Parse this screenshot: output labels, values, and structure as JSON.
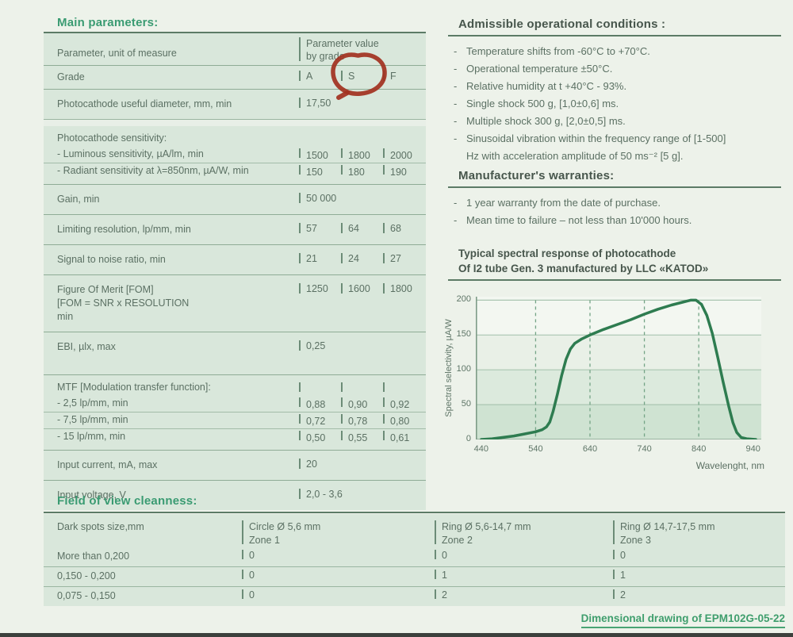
{
  "colors": {
    "page_bg": "#edf2ea",
    "table_bg": "#d9e7db",
    "heading_green": "#3a9b72",
    "heading_dark": "#47564c",
    "body_text": "#5b7063",
    "chart_line": "#2e7c50",
    "annotation_red": "#a23120"
  },
  "annotation": {
    "type": "hand-drawn red circle",
    "circled_value": "S"
  },
  "main": {
    "title": "Main parameters:",
    "header_param": "Parameter, unit of measure",
    "header_value_line1": "Parameter value",
    "header_value_line2": "by grade",
    "grade_label": "Grade",
    "grades": [
      "A",
      "S",
      "F"
    ],
    "rows": [
      {
        "label": "Photocathode useful diameter, mm, min",
        "value": "17,50"
      },
      {
        "label": "Photocathode sensitivity:",
        "sub": [
          {
            "label": "- Luminous sensitivity, µA/lm, min",
            "values": [
              "1500",
              "1800",
              "2000"
            ]
          },
          {
            "label": "- Radiant sensitivity at λ=850nm, µA/W, min",
            "values": [
              "150",
              "180",
              "190"
            ]
          }
        ]
      },
      {
        "label": "Gain, min",
        "value": "50 000"
      },
      {
        "label": "Limiting resolution, lp/mm, min",
        "values": [
          "57",
          "64",
          "68"
        ]
      },
      {
        "label": "Signal to noise ratio, min",
        "values": [
          "21",
          "24",
          "27"
        ]
      },
      {
        "label_lines": [
          "Figure Of Merit [FOM]",
          "[FOM = SNR x RESOLUTION",
          "min"
        ],
        "values": [
          "1250",
          "1600",
          "1800"
        ]
      },
      {
        "label": "EBI, µlx, max",
        "value": "0,25"
      },
      {
        "label": "MTF [Modulation transfer function]:",
        "sub": [
          {
            "label": "- 2,5 lp/mm, min",
            "values": [
              "0,88",
              "0,90",
              "0,92"
            ]
          },
          {
            "label": "- 7,5 lp/mm, min",
            "values": [
              "0,72",
              "0,78",
              "0,80"
            ]
          },
          {
            "label": "- 15 lp/mm, min",
            "values": [
              "0,50",
              "0,55",
              "0,61"
            ]
          }
        ]
      },
      {
        "label": "Input current, mA, max",
        "value": "20"
      },
      {
        "label": "Input voltage, V",
        "value": "2,0 - 3,6"
      }
    ]
  },
  "conditions": {
    "title": "Admissible operational conditions :",
    "items": [
      "Temperature shifts from -60°C to +70°C.",
      "Operational temperature ±50°C.",
      "Relative humidity at t +40°C - 93%.",
      "Single shock 500 g, [1,0±0,6] ms.",
      "Multiple shock 300 g, [2,0±0,5] ms.",
      "Sinusoidal vibration within the frequency range of [1-500] Hz with acceleration amplitude of 50 ms⁻² [5 g]."
    ]
  },
  "warranties": {
    "title": "Manufacturer's warranties:",
    "items": [
      "1 year warranty from the date of purchase.",
      "Mean time to failure – not less than 10'000 hours."
    ]
  },
  "spectral": {
    "title_line1": "Typical spectral response of photocathode",
    "title_line2": "Of I2 tube Gen. 3 manufactured by LLC «KATOD»"
  },
  "chart_data": {
    "type": "line",
    "title": "Typical spectral response of photocathode of I2 tube Gen. 3 manufactured by LLC «KATOD»",
    "xlabel": "Wavelenght, nm",
    "ylabel": "Spectral selectivity, µA/W",
    "xlim": [
      430,
      955
    ],
    "ylim": [
      0,
      205
    ],
    "x_ticks": [
      440,
      540,
      640,
      740,
      840,
      940
    ],
    "y_ticks": [
      0,
      50,
      100,
      150,
      200
    ],
    "grid": {
      "horizontal": "solid",
      "vertical": "dashed"
    },
    "legend": "none",
    "line_color": "#2e7c50",
    "series": [
      {
        "name": "photocathode spectral response",
        "points": [
          [
            440,
            0
          ],
          [
            460,
            1
          ],
          [
            480,
            3
          ],
          [
            500,
            5
          ],
          [
            520,
            8
          ],
          [
            540,
            11
          ],
          [
            552,
            14
          ],
          [
            560,
            18
          ],
          [
            566,
            25
          ],
          [
            572,
            40
          ],
          [
            580,
            65
          ],
          [
            588,
            92
          ],
          [
            596,
            115
          ],
          [
            604,
            130
          ],
          [
            612,
            138
          ],
          [
            624,
            144
          ],
          [
            640,
            150
          ],
          [
            665,
            158
          ],
          [
            690,
            165
          ],
          [
            715,
            172
          ],
          [
            740,
            180
          ],
          [
            765,
            187
          ],
          [
            790,
            193
          ],
          [
            810,
            197
          ],
          [
            825,
            200
          ],
          [
            835,
            200
          ],
          [
            845,
            194
          ],
          [
            855,
            178
          ],
          [
            865,
            152
          ],
          [
            875,
            118
          ],
          [
            885,
            82
          ],
          [
            895,
            48
          ],
          [
            903,
            24
          ],
          [
            910,
            10
          ],
          [
            918,
            3
          ],
          [
            928,
            1
          ],
          [
            945,
            0
          ]
        ]
      }
    ]
  },
  "fov": {
    "title": "Field of view cleanness:",
    "col_label": "Dark spots size,mm",
    "columns": [
      {
        "line1": "Circle Ø 5,6 mm",
        "line2": "Zone 1"
      },
      {
        "line1": "Ring Ø 5,6-14,7 mm",
        "line2": "Zone 2"
      },
      {
        "line1": "Ring Ø 14,7-17,5 mm",
        "line2": "Zone 3"
      }
    ],
    "rows": [
      {
        "label": "More than 0,200",
        "values": [
          "0",
          "0",
          "0"
        ]
      },
      {
        "label": "0,150 - 0,200",
        "values": [
          "0",
          "1",
          "1"
        ]
      },
      {
        "label": "0,075 - 0,150",
        "values": [
          "0",
          "2",
          "2"
        ]
      }
    ]
  },
  "footer": {
    "dimensional_drawing": "Dimensional drawing of EPM102G-05-22"
  }
}
